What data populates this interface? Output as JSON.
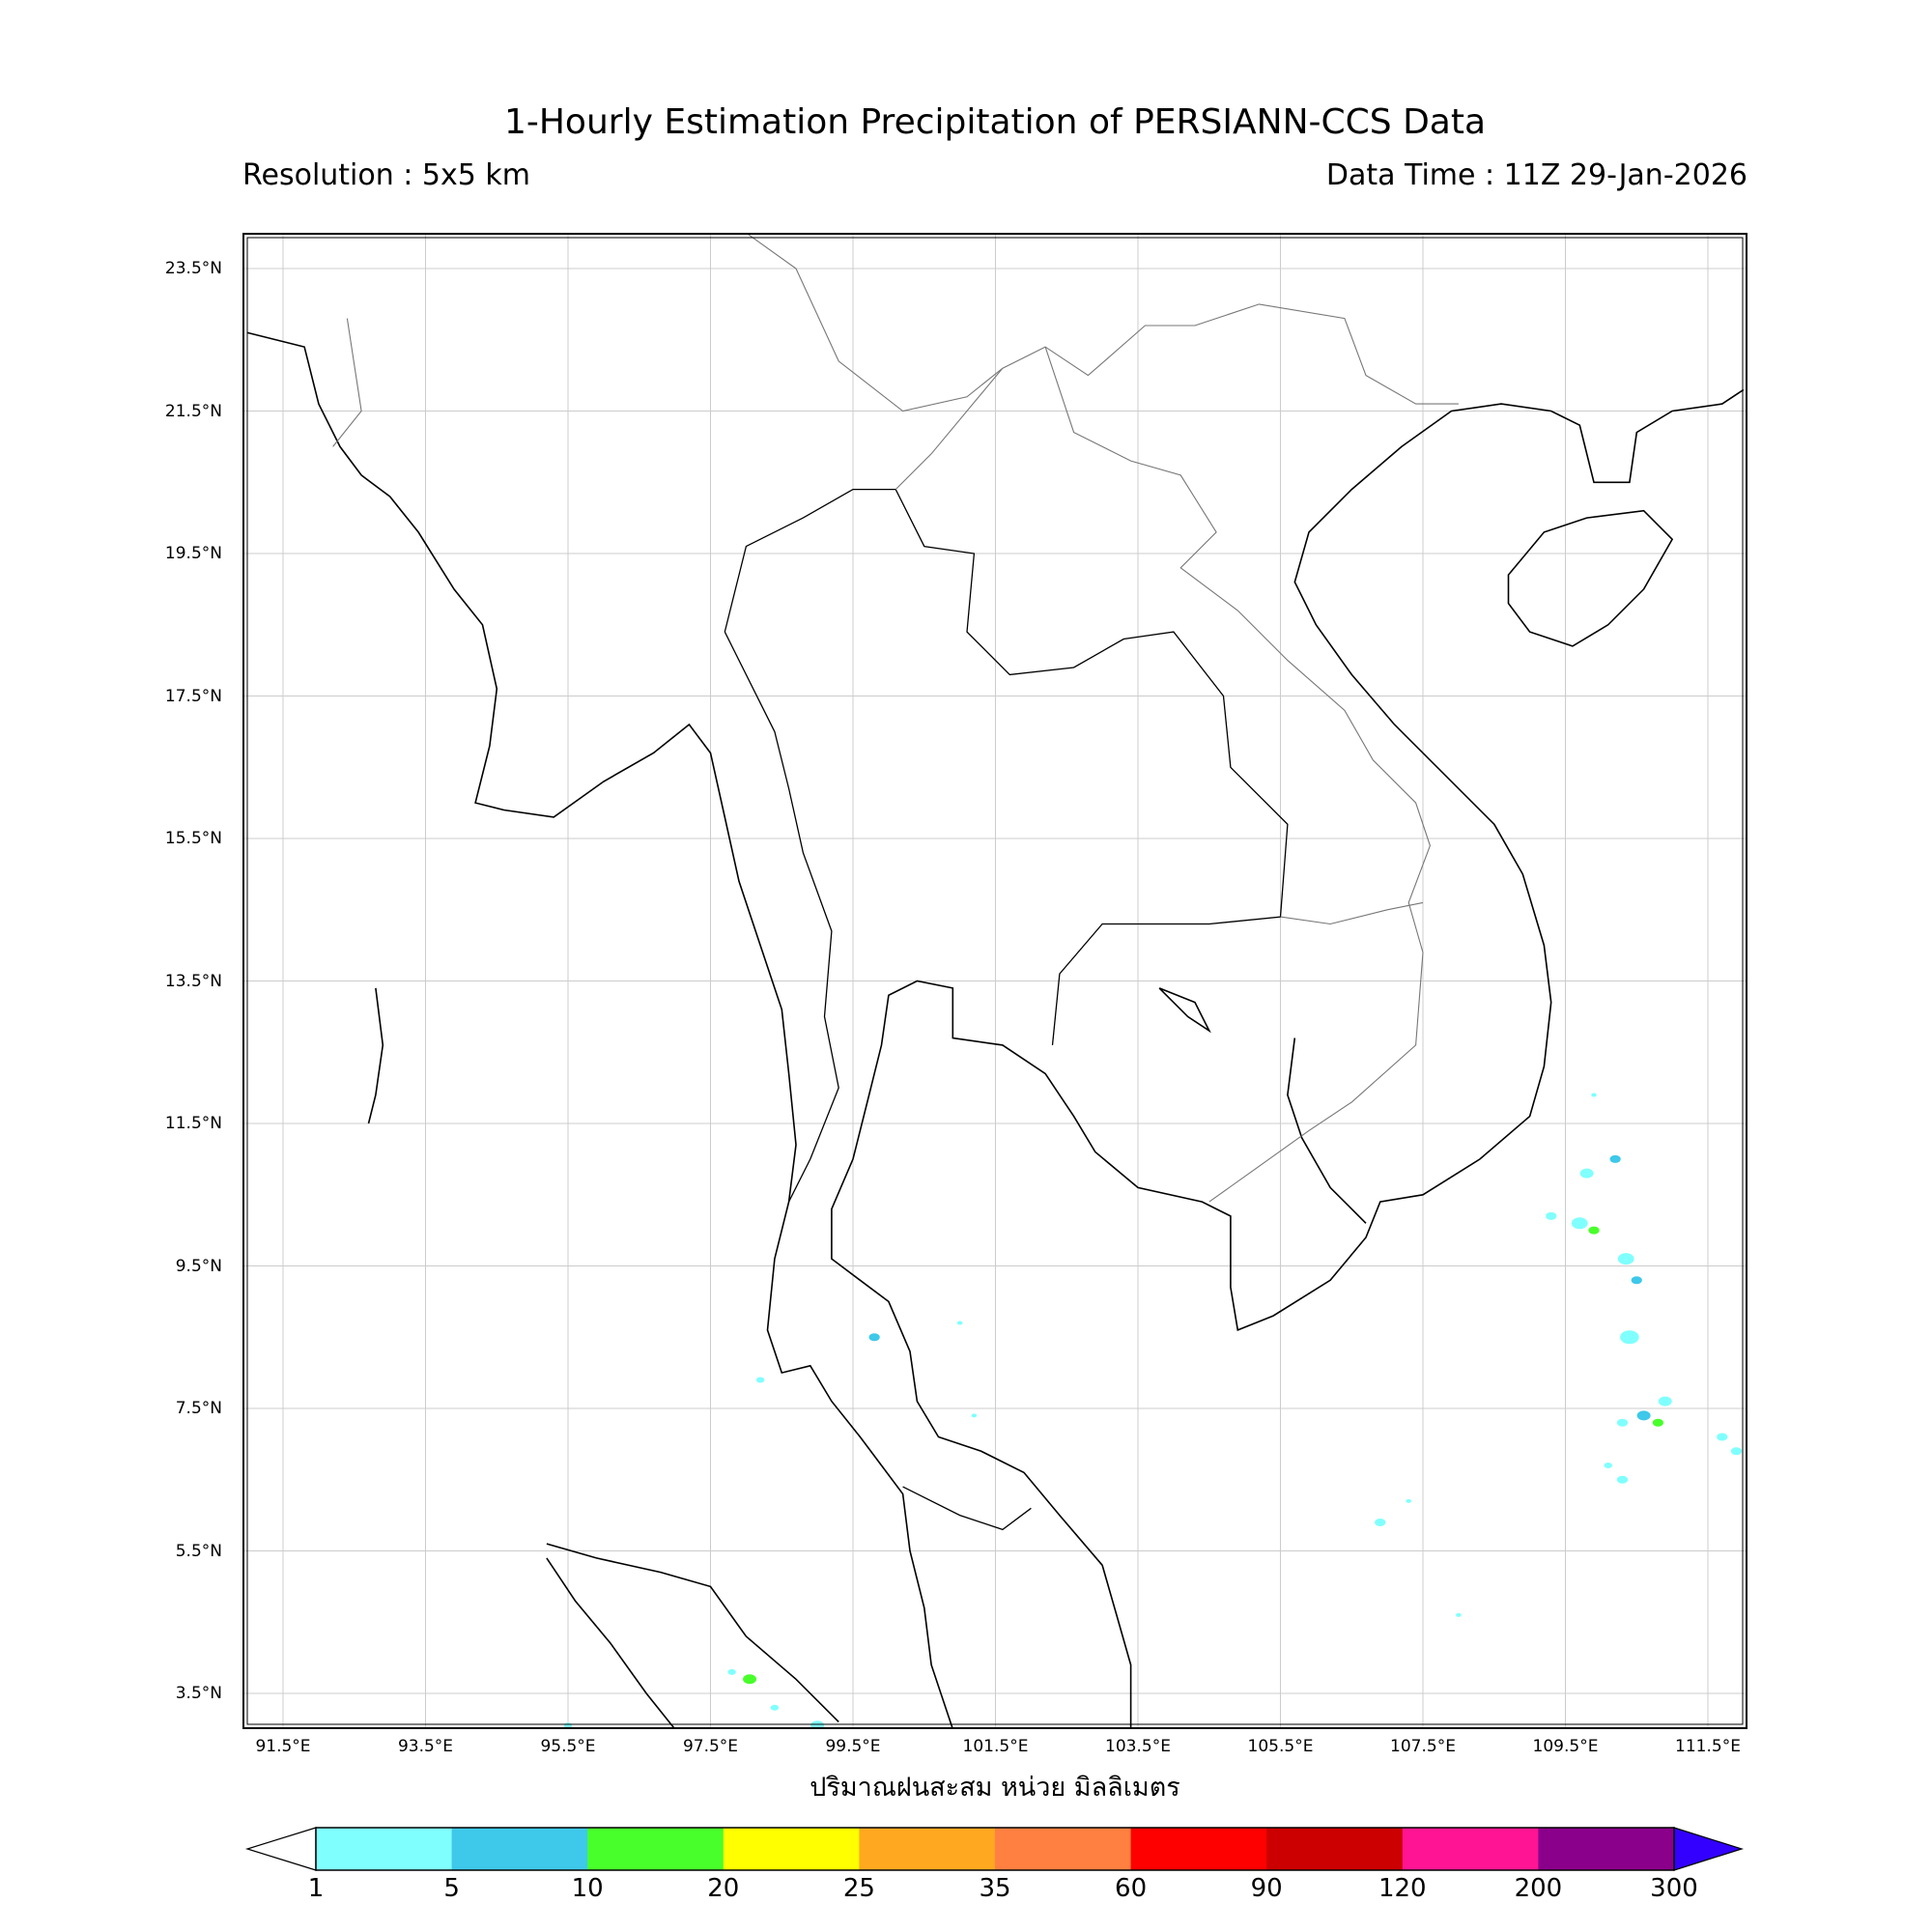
{
  "header": {
    "title": "1-Hourly Estimation Precipitation of PERSIANN-CCS Data",
    "resolution": "Resolution : 5x5 km",
    "data_time": "Data Time : 11Z 29-Jan-2026"
  },
  "map": {
    "extent": {
      "lon": [
        90.9,
        112.05
      ],
      "lat": [
        3.0,
        24.0
      ]
    },
    "lat_labels": [
      "23.5°N",
      "21.5°N",
      "19.5°N",
      "17.5°N",
      "15.5°N",
      "13.5°N",
      "11.5°N",
      "9.5°N",
      "7.5°N",
      "5.5°N",
      "3.5°N"
    ],
    "lon_labels": [
      "91.5°E",
      "93.5°E",
      "95.5°E",
      "97.5°E",
      "99.5°E",
      "101.5°E",
      "103.5°E",
      "105.5°E",
      "107.5°E",
      "109.5°E",
      "111.5°E"
    ],
    "grid": true
  },
  "colorbar": {
    "label": "ปริมาณฝนสะสม หน่วย มิลลิเมตร",
    "ticks": [
      "1",
      "5",
      "10",
      "20",
      "25",
      "35",
      "60",
      "90",
      "120",
      "200",
      "300"
    ],
    "colors": [
      "#80FFFF",
      "#3EC8EA",
      "#48FF2B",
      "#FFFF00",
      "#FFA820",
      "#FF8040",
      "#FF0000",
      "#CC0000",
      "#FF1493",
      "#8B008B"
    ],
    "over_color": "#3300FF",
    "under_color": "#FFFFFF"
  }
}
